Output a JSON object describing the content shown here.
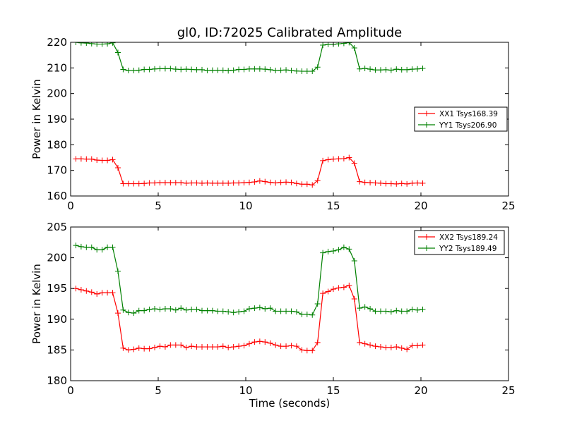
{
  "chart_data": [
    {
      "type": "line",
      "title": "gl0, ID:72025 Calibrated Amplitude",
      "xlabel": "",
      "ylabel": "Power in Kelvin",
      "xlim": [
        0,
        25
      ],
      "ylim": [
        160,
        220
      ],
      "xticks": [
        0,
        5,
        10,
        15,
        20,
        25
      ],
      "yticks": [
        160,
        170,
        180,
        190,
        200,
        210,
        220
      ],
      "grid": false,
      "legend_position": "center-right",
      "x": [
        0.3,
        0.6,
        0.9,
        1.2,
        1.5,
        1.8,
        2.1,
        2.4,
        2.7,
        3.0,
        3.3,
        3.6,
        3.9,
        4.2,
        4.5,
        4.8,
        5.1,
        5.4,
        5.7,
        6.0,
        6.3,
        6.6,
        6.9,
        7.2,
        7.5,
        7.8,
        8.1,
        8.4,
        8.7,
        9.0,
        9.3,
        9.6,
        9.9,
        10.2,
        10.5,
        10.8,
        11.1,
        11.4,
        11.7,
        12.0,
        12.3,
        12.6,
        12.9,
        13.2,
        13.5,
        13.8,
        14.1,
        14.4,
        14.7,
        15.0,
        15.3,
        15.6,
        15.9,
        16.2,
        16.5,
        16.8,
        17.1,
        17.4,
        17.7,
        18.0,
        18.3,
        18.6,
        18.9,
        19.2,
        19.5,
        19.8,
        20.1
      ],
      "series": [
        {
          "name": "XX1 Tsys168.39",
          "color": "#ff0000",
          "values": [
            174.5,
            174.5,
            174.4,
            174.4,
            174.0,
            173.9,
            173.9,
            174.2,
            171.0,
            164.8,
            164.8,
            164.8,
            164.8,
            164.9,
            165.1,
            165.1,
            165.2,
            165.2,
            165.2,
            165.2,
            165.2,
            165.0,
            165.1,
            165.1,
            165.0,
            165.1,
            165.0,
            165.0,
            165.0,
            165.0,
            165.1,
            165.1,
            165.2,
            165.3,
            165.5,
            165.9,
            165.6,
            165.3,
            165.1,
            165.3,
            165.4,
            165.3,
            164.9,
            164.6,
            164.6,
            164.3,
            166.0,
            173.8,
            174.2,
            174.4,
            174.5,
            174.6,
            175.0,
            172.8,
            165.6,
            165.3,
            165.2,
            165.1,
            165.0,
            164.8,
            164.8,
            164.7,
            164.9,
            164.7,
            165.0,
            165.1,
            165.0
          ]
        },
        {
          "name": "YY1 Tsys206.90",
          "color": "#008000",
          "values": [
            220.0,
            219.8,
            219.7,
            219.5,
            219.3,
            219.3,
            219.4,
            219.8,
            216.0,
            209.4,
            209.0,
            209.0,
            209.1,
            209.4,
            209.4,
            209.6,
            209.7,
            209.7,
            209.7,
            209.5,
            209.4,
            209.5,
            209.4,
            209.3,
            209.3,
            209.0,
            209.1,
            209.1,
            209.1,
            208.9,
            209.1,
            209.4,
            209.4,
            209.6,
            209.6,
            209.6,
            209.5,
            209.3,
            209.0,
            209.1,
            209.2,
            209.0,
            208.8,
            208.7,
            208.7,
            208.7,
            210.3,
            218.9,
            219.2,
            219.2,
            219.4,
            219.6,
            219.9,
            217.8,
            209.6,
            209.8,
            209.5,
            209.2,
            209.2,
            209.3,
            209.1,
            209.5,
            209.3,
            209.3,
            209.5,
            209.6,
            209.8
          ]
        }
      ]
    },
    {
      "type": "line",
      "title": "",
      "xlabel": "Time (seconds)",
      "ylabel": "Power in Kelvin",
      "xlim": [
        0,
        25
      ],
      "ylim": [
        180,
        205
      ],
      "xticks": [
        0,
        5,
        10,
        15,
        20,
        25
      ],
      "yticks": [
        180,
        185,
        190,
        195,
        200,
        205
      ],
      "grid": false,
      "legend_position": "top-right",
      "x": [
        0.3,
        0.6,
        0.9,
        1.2,
        1.5,
        1.8,
        2.1,
        2.4,
        2.7,
        3.0,
        3.3,
        3.6,
        3.9,
        4.2,
        4.5,
        4.8,
        5.1,
        5.4,
        5.7,
        6.0,
        6.3,
        6.6,
        6.9,
        7.2,
        7.5,
        7.8,
        8.1,
        8.4,
        8.7,
        9.0,
        9.3,
        9.6,
        9.9,
        10.2,
        10.5,
        10.8,
        11.1,
        11.4,
        11.7,
        12.0,
        12.3,
        12.6,
        12.9,
        13.2,
        13.5,
        13.8,
        14.1,
        14.4,
        14.7,
        15.0,
        15.3,
        15.6,
        15.9,
        16.2,
        16.5,
        16.8,
        17.1,
        17.4,
        17.7,
        18.0,
        18.3,
        18.6,
        18.9,
        19.2,
        19.5,
        19.8,
        20.1
      ],
      "series": [
        {
          "name": "XX2 Tsys189.24",
          "color": "#ff0000",
          "values": [
            195.0,
            194.8,
            194.6,
            194.4,
            194.1,
            194.3,
            194.3,
            194.3,
            191.0,
            185.3,
            185.0,
            185.1,
            185.3,
            185.2,
            185.2,
            185.4,
            185.6,
            185.5,
            185.8,
            185.8,
            185.8,
            185.4,
            185.6,
            185.5,
            185.5,
            185.5,
            185.5,
            185.5,
            185.6,
            185.4,
            185.5,
            185.6,
            185.7,
            186.0,
            186.3,
            186.4,
            186.3,
            186.1,
            185.8,
            185.6,
            185.6,
            185.7,
            185.6,
            185.0,
            184.9,
            184.9,
            186.2,
            194.2,
            194.5,
            194.9,
            195.1,
            195.2,
            195.5,
            193.3,
            186.2,
            186.0,
            185.8,
            185.6,
            185.5,
            185.4,
            185.4,
            185.5,
            185.3,
            185.1,
            185.7,
            185.7,
            185.8
          ]
        },
        {
          "name": "YY2 Tsys189.49",
          "color": "#008000",
          "values": [
            202.0,
            201.8,
            201.7,
            201.7,
            201.3,
            201.3,
            201.7,
            201.7,
            197.8,
            191.5,
            191.1,
            191.0,
            191.4,
            191.4,
            191.6,
            191.7,
            191.6,
            191.7,
            191.7,
            191.5,
            191.8,
            191.5,
            191.6,
            191.6,
            191.4,
            191.4,
            191.4,
            191.3,
            191.3,
            191.2,
            191.1,
            191.2,
            191.3,
            191.7,
            191.8,
            191.9,
            191.7,
            191.8,
            191.3,
            191.3,
            191.3,
            191.3,
            191.2,
            190.8,
            190.8,
            190.7,
            192.5,
            200.8,
            201.0,
            201.1,
            201.3,
            201.7,
            201.4,
            199.5,
            191.8,
            192.0,
            191.7,
            191.3,
            191.3,
            191.3,
            191.2,
            191.4,
            191.3,
            191.3,
            191.6,
            191.5,
            191.6
          ]
        }
      ]
    }
  ]
}
